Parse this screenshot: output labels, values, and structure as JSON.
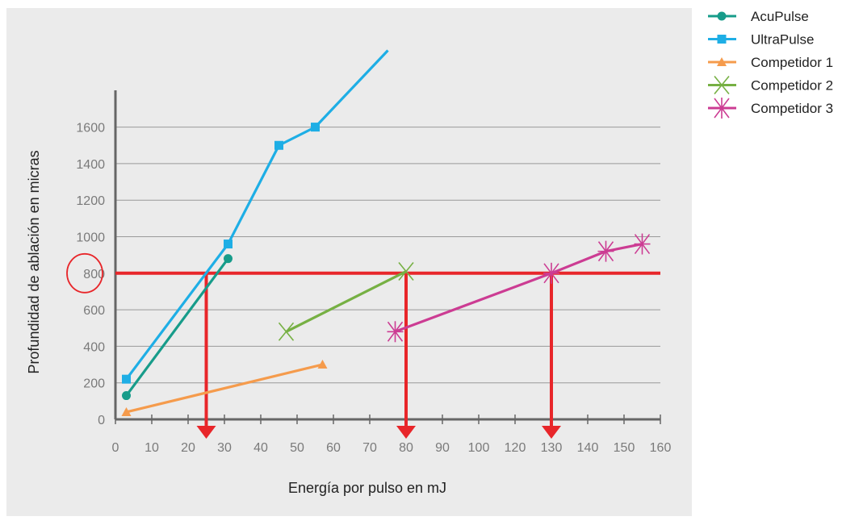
{
  "chart_data": {
    "type": "line",
    "xlabel": "Energía por pulso en mJ",
    "ylabel": "Profundidad de ablación en micras",
    "xlim": [
      0,
      160
    ],
    "ylim": [
      0,
      1800
    ],
    "x_ticks": [
      0,
      10,
      20,
      30,
      40,
      50,
      60,
      70,
      80,
      90,
      100,
      120,
      130,
      140,
      150,
      160
    ],
    "x_ticks_note": "printed tick labels",
    "y_ticks": [
      0,
      200,
      400,
      600,
      800,
      1000,
      1200,
      1400,
      1600
    ],
    "grid": "horizontal",
    "legend_position": "top-right outside",
    "series": [
      {
        "name": "AcuPulse",
        "color": "#179c8a",
        "marker": "circle",
        "points": [
          [
            3,
            130
          ],
          [
            31,
            880
          ]
        ]
      },
      {
        "name": "UltraPulse",
        "color": "#1eaee5",
        "marker": "square",
        "points": [
          [
            3,
            220
          ],
          [
            31,
            960
          ],
          [
            45,
            1500
          ],
          [
            55,
            1600
          ]
        ],
        "line_extends_to": [
          75,
          2020
        ]
      },
      {
        "name": "Competidor 1",
        "color": "#f59b4c",
        "marker": "triangle",
        "points": [
          [
            3,
            40
          ],
          [
            57,
            300
          ]
        ]
      },
      {
        "name": "Competidor 2",
        "color": "#76b043",
        "marker": "x",
        "points": [
          [
            47,
            480
          ],
          [
            80,
            810
          ]
        ]
      },
      {
        "name": "Competidor 3",
        "color": "#cc3c93",
        "marker": "star",
        "points": [
          [
            77,
            480
          ],
          [
            130,
            800
          ],
          [
            145,
            920
          ],
          [
            155,
            960
          ]
        ]
      }
    ],
    "annotations": {
      "reference_line_y": 800,
      "highlighted_tick": 800,
      "arrows_down_at_x": [
        25,
        80,
        130
      ],
      "color": "#e8262a"
    }
  }
}
